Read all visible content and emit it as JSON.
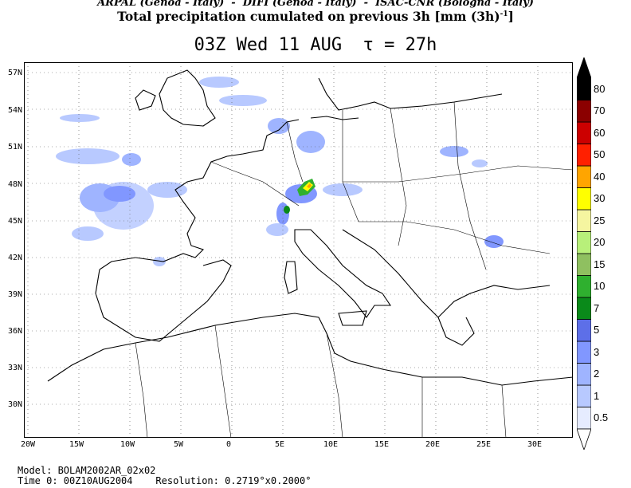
{
  "header": {
    "credits": "ARPAL (Genoa - Italy)  -  DIFI (Genoa - Italy)  -  ISAC-CNR (Bologna - Italy)",
    "title": "Total precipitation cumulated on previous 3h [mm (3h)",
    "title_sup": "-1",
    "title_end": "]",
    "time_label": "03Z Wed 11 AUG",
    "tau_label": "τ = 27h"
  },
  "map": {
    "lat_ticks": [
      "57N",
      "54N",
      "51N",
      "48N",
      "45N",
      "42N",
      "39N",
      "36N",
      "33N",
      "30N"
    ],
    "lon_ticks": [
      "20W",
      "15W",
      "10W",
      "5W",
      "0",
      "5E",
      "10E",
      "15E",
      "20E",
      "25E",
      "30E"
    ]
  },
  "colorbar": {
    "levels": [
      "0.5",
      "1",
      "2",
      "3",
      "5",
      "7",
      "10",
      "15",
      "20",
      "25",
      "30",
      "40",
      "50",
      "60",
      "70",
      "80"
    ],
    "colors": [
      "#e6ecff",
      "#b8c9ff",
      "#9fb4ff",
      "#8197ff",
      "#5d6fe8",
      "#0a8a1a",
      "#2fb02f",
      "#8fc060",
      "#b8f07a",
      "#f5f5a0",
      "#ffff00",
      "#ffa500",
      "#ff2000",
      "#cc0000",
      "#8b0000",
      "#000000"
    ]
  },
  "footer": {
    "model": "Model: BOLAM2002AR_02x02",
    "time0": "Time 0: 00Z10AUG2004",
    "resolution": "Resolution: 0.2719°x0.2000°"
  }
}
